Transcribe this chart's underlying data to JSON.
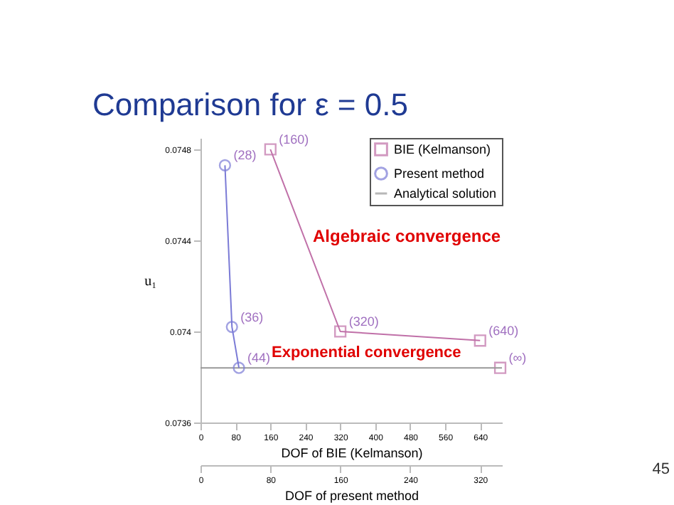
{
  "chart_data": {
    "type": "line",
    "title": "Comparison for ε = 0.5",
    "xlabel": "DOF of BIE (Kelmanson)",
    "x2label": "DOF of present method",
    "ylabel": "u₁",
    "xlim": [
      0,
      690
    ],
    "xticks": [
      0,
      80,
      160,
      240,
      320,
      400,
      480,
      560,
      640
    ],
    "x2lim": [
      0,
      345
    ],
    "x2ticks": [
      0,
      80,
      160,
      240,
      320
    ],
    "ylim": [
      0.0736,
      0.07485
    ],
    "yticks": [
      0.0736,
      0.074,
      0.0744,
      0.0748
    ],
    "series": [
      {
        "name": "BIE (Kelmanson)",
        "color": "#c070a8",
        "marker": "square",
        "x": [
          160,
          320,
          640
        ],
        "values": [
          0.0748,
          0.074,
          0.07396
        ]
      },
      {
        "name": "Present method",
        "color": "#7b7bd6",
        "marker": "circle",
        "axis": "x2",
        "x": [
          28,
          36,
          44
        ],
        "values": [
          0.07473,
          0.07402,
          0.07384
        ]
      },
      {
        "type": "scatter",
        "color": "#c070a8",
        "marker": "square",
        "x": [
          686
        ],
        "values": [
          0.07384
        ]
      }
    ],
    "ref_lines": [
      {
        "axis": "y",
        "value": 0.07384,
        "label": "Analytical solution",
        "color": "#999999"
      }
    ],
    "legend": "top right",
    "line_style": "solid",
    "annotations": [
      {
        "text": "(160)",
        "x": 160,
        "y": 0.0748
      },
      {
        "text": "(320)",
        "x": 320,
        "y": 0.074
      },
      {
        "text": "(640)",
        "x": 640,
        "y": 0.07396
      },
      {
        "text": "(∞)",
        "x": 686,
        "y": 0.07384
      },
      {
        "text": "(28)",
        "x": 56,
        "y": 0.07473
      },
      {
        "text": "(36)",
        "x": 72,
        "y": 0.07402
      },
      {
        "text": "(44)",
        "x": 88,
        "y": 0.07384
      },
      "Algebraic convergence",
      "Exponential convergence",
      "45"
    ]
  }
}
